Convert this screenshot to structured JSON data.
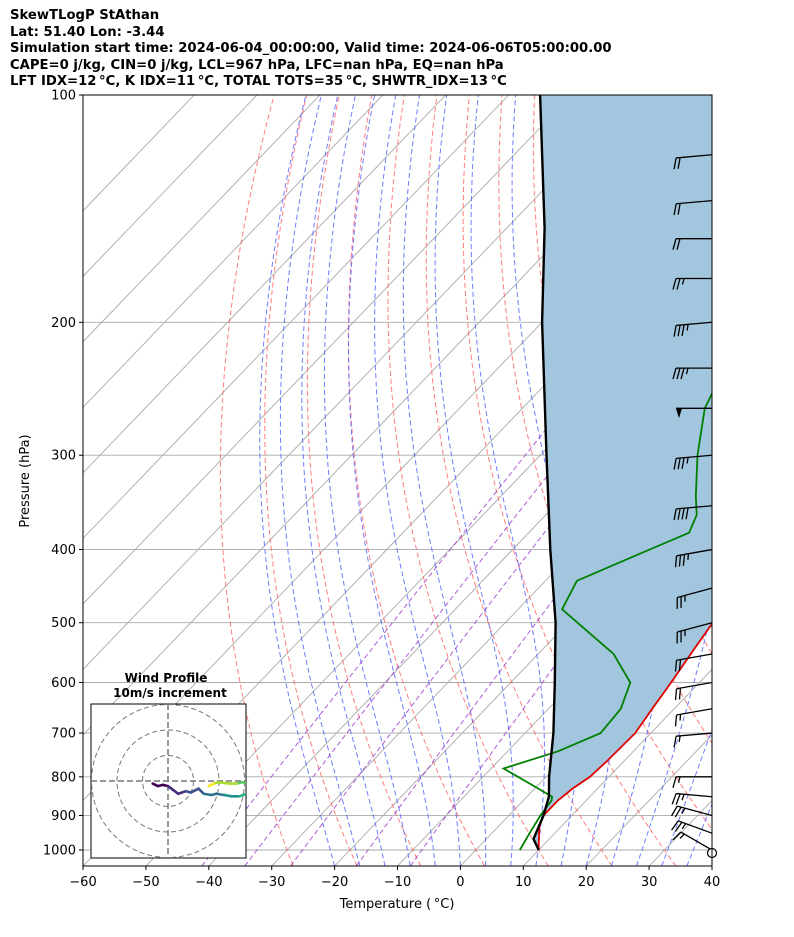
{
  "header": {
    "line1": "SkewTLogP StAthan",
    "line2": "Lat: 51.40   Lon: -3.44",
    "line3": "Simulation start time: 2024-06-04_00:00:00, Valid time: 2024-06-06T05:00:00.00",
    "line4": "CAPE=0 j/kg, CIN=0 j/kg, LCL=967 hPa, LFC=nan hPa, EQ=nan hPa",
    "line5": "LFT IDX=12 °C, K IDX=11 °C, TOTAL TOTS=35 °C, SHWTR_IDX=13 °C"
  },
  "colors": {
    "temperature": "#e00000",
    "dewpoint": "#008000",
    "parcel": "#000000",
    "cape_fill": "#a3c6df",
    "dry_adiabat": "#ff6666",
    "moist_adiabat": "#5566ff",
    "mixing_ratio": "#9933cc",
    "isotherm": "#aaaaaa"
  },
  "chart_data": {
    "type": "line",
    "xlabel": "Temperature ( °C)",
    "ylabel": "Pressure (hPa)",
    "xlim": [
      -60,
      40
    ],
    "ylim": [
      1050,
      100
    ],
    "log_y": true,
    "grid": true,
    "x_ticks": [
      "−60",
      "−50",
      "−40",
      "−30",
      "−20",
      "−10",
      "0",
      "10",
      "20",
      "30",
      "40"
    ],
    "y_ticks": [
      "100",
      "200",
      "300",
      "400",
      "500",
      "600",
      "700",
      "800",
      "900",
      "1000"
    ],
    "y_tick_values": [
      100,
      200,
      300,
      400,
      500,
      600,
      700,
      800,
      900,
      1000
    ],
    "x_tick_values": [
      -60,
      -50,
      -40,
      -30,
      -20,
      -10,
      0,
      10,
      20,
      30,
      40
    ],
    "series": [
      {
        "key": "temperature",
        "points": [
          [
            1000,
            10.0
          ],
          [
            970,
            8.5
          ],
          [
            930,
            6.5
          ],
          [
            900,
            5.5
          ],
          [
            860,
            5.5
          ],
          [
            830,
            6.0
          ],
          [
            800,
            7.0
          ],
          [
            760,
            7.3
          ],
          [
            700,
            7.5
          ],
          [
            650,
            6.5
          ],
          [
            600,
            5.5
          ],
          [
            540,
            4.0
          ],
          [
            500,
            3.0
          ],
          [
            460,
            2.0
          ],
          [
            420,
            0.5
          ],
          [
            380,
            -1.5
          ],
          [
            340,
            -4.0
          ],
          [
            300,
            -7.0
          ],
          [
            270,
            -9.0
          ],
          [
            255,
            -9.5
          ],
          [
            240,
            -8.5
          ],
          [
            225,
            -7.0
          ],
          [
            210,
            -6.5
          ],
          [
            200,
            -6.0
          ],
          [
            180,
            -4.0
          ],
          [
            165,
            -2.0
          ],
          [
            150,
            -1.0
          ],
          [
            135,
            0.5
          ],
          [
            115,
            2.0
          ],
          [
            100,
            4.0
          ]
        ]
      },
      {
        "key": "dewpoint",
        "points": [
          [
            1000,
            7.0
          ],
          [
            950,
            6.0
          ],
          [
            900,
            5.0
          ],
          [
            860,
            4.5
          ],
          [
            850,
            4.0
          ],
          [
            820,
            -1.0
          ],
          [
            780,
            -8.0
          ],
          [
            740,
            -2.0
          ],
          [
            700,
            2.0
          ],
          [
            650,
            1.5
          ],
          [
            600,
            -1.0
          ],
          [
            550,
            -8.0
          ],
          [
            480,
            -23.0
          ],
          [
            440,
            -25.0
          ],
          [
            410,
            -20.0
          ],
          [
            380,
            -14.5
          ],
          [
            360,
            -16.0
          ],
          [
            340,
            -19.0
          ],
          [
            300,
            -25.0
          ],
          [
            260,
            -31.0
          ],
          [
            230,
            -34.0
          ],
          [
            200,
            -34.0
          ],
          [
            185,
            -37.0
          ],
          [
            170,
            -45.0
          ],
          [
            150,
            -43.0
          ],
          [
            130,
            -40.0
          ],
          [
            115,
            -38.0
          ],
          [
            100,
            -35.0
          ]
        ]
      },
      {
        "key": "parcel",
        "points": [
          [
            1000,
            10.0
          ],
          [
            967,
            7.5
          ],
          [
            900,
            5.5
          ],
          [
            850,
            3.5
          ],
          [
            800,
            0.5
          ],
          [
            700,
            -5.5
          ],
          [
            600,
            -13.0
          ],
          [
            500,
            -22.0
          ],
          [
            400,
            -34.0
          ],
          [
            300,
            -49.0
          ],
          [
            200,
            -70.0
          ],
          [
            150,
            -84.0
          ],
          [
            100,
            -105.0
          ]
        ]
      }
    ],
    "wind_barbs": [
      {
        "p": 1000,
        "spd": 15,
        "dir": 240
      },
      {
        "p": 950,
        "spd": 25,
        "dir": 250
      },
      {
        "p": 900,
        "spd": 25,
        "dir": 255
      },
      {
        "p": 850,
        "spd": 25,
        "dir": 265
      },
      {
        "p": 800,
        "spd": 15,
        "dir": 270
      },
      {
        "p": 700,
        "spd": 15,
        "dir": 275
      },
      {
        "p": 650,
        "spd": 15,
        "dir": 280
      },
      {
        "p": 600,
        "spd": 20,
        "dir": 280
      },
      {
        "p": 550,
        "spd": 20,
        "dir": 280
      },
      {
        "p": 500,
        "spd": 25,
        "dir": 285
      },
      {
        "p": 450,
        "spd": 25,
        "dir": 285
      },
      {
        "p": 400,
        "spd": 35,
        "dir": 280
      },
      {
        "p": 350,
        "spd": 40,
        "dir": 275
      },
      {
        "p": 300,
        "spd": 35,
        "dir": 275
      },
      {
        "p": 260,
        "spd": 50,
        "dir": 270
      },
      {
        "p": 230,
        "spd": 35,
        "dir": 270
      },
      {
        "p": 200,
        "spd": 35,
        "dir": 275
      },
      {
        "p": 175,
        "spd": 25,
        "dir": 270
      },
      {
        "p": 155,
        "spd": 20,
        "dir": 270
      },
      {
        "p": 138,
        "spd": 20,
        "dir": 275
      },
      {
        "p": 120,
        "spd": 20,
        "dir": 275
      }
    ],
    "hodograph": {
      "title": "Wind Profile",
      "subtitle": "10m/s increment",
      "rings": [
        10,
        20,
        30
      ],
      "points": [
        [
          -6,
          -1
        ],
        [
          -4,
          -2
        ],
        [
          -2,
          -1.5
        ],
        [
          0,
          -2
        ],
        [
          2,
          -3.5
        ],
        [
          4,
          -5
        ],
        [
          7,
          -4
        ],
        [
          9,
          -4.5
        ],
        [
          12,
          -3
        ],
        [
          14,
          -5
        ],
        [
          17,
          -5.5
        ],
        [
          19,
          -5
        ],
        [
          22,
          -5.5
        ],
        [
          25,
          -6
        ],
        [
          28,
          -6
        ],
        [
          31,
          -5
        ],
        [
          33,
          -4
        ],
        [
          34,
          -2.5
        ],
        [
          32,
          -1
        ],
        [
          29,
          -0.5
        ],
        [
          27,
          -1
        ],
        [
          24,
          -1
        ],
        [
          20,
          -0.5
        ],
        [
          18,
          -1
        ],
        [
          17,
          -1.5
        ],
        [
          16,
          -2
        ]
      ]
    }
  }
}
